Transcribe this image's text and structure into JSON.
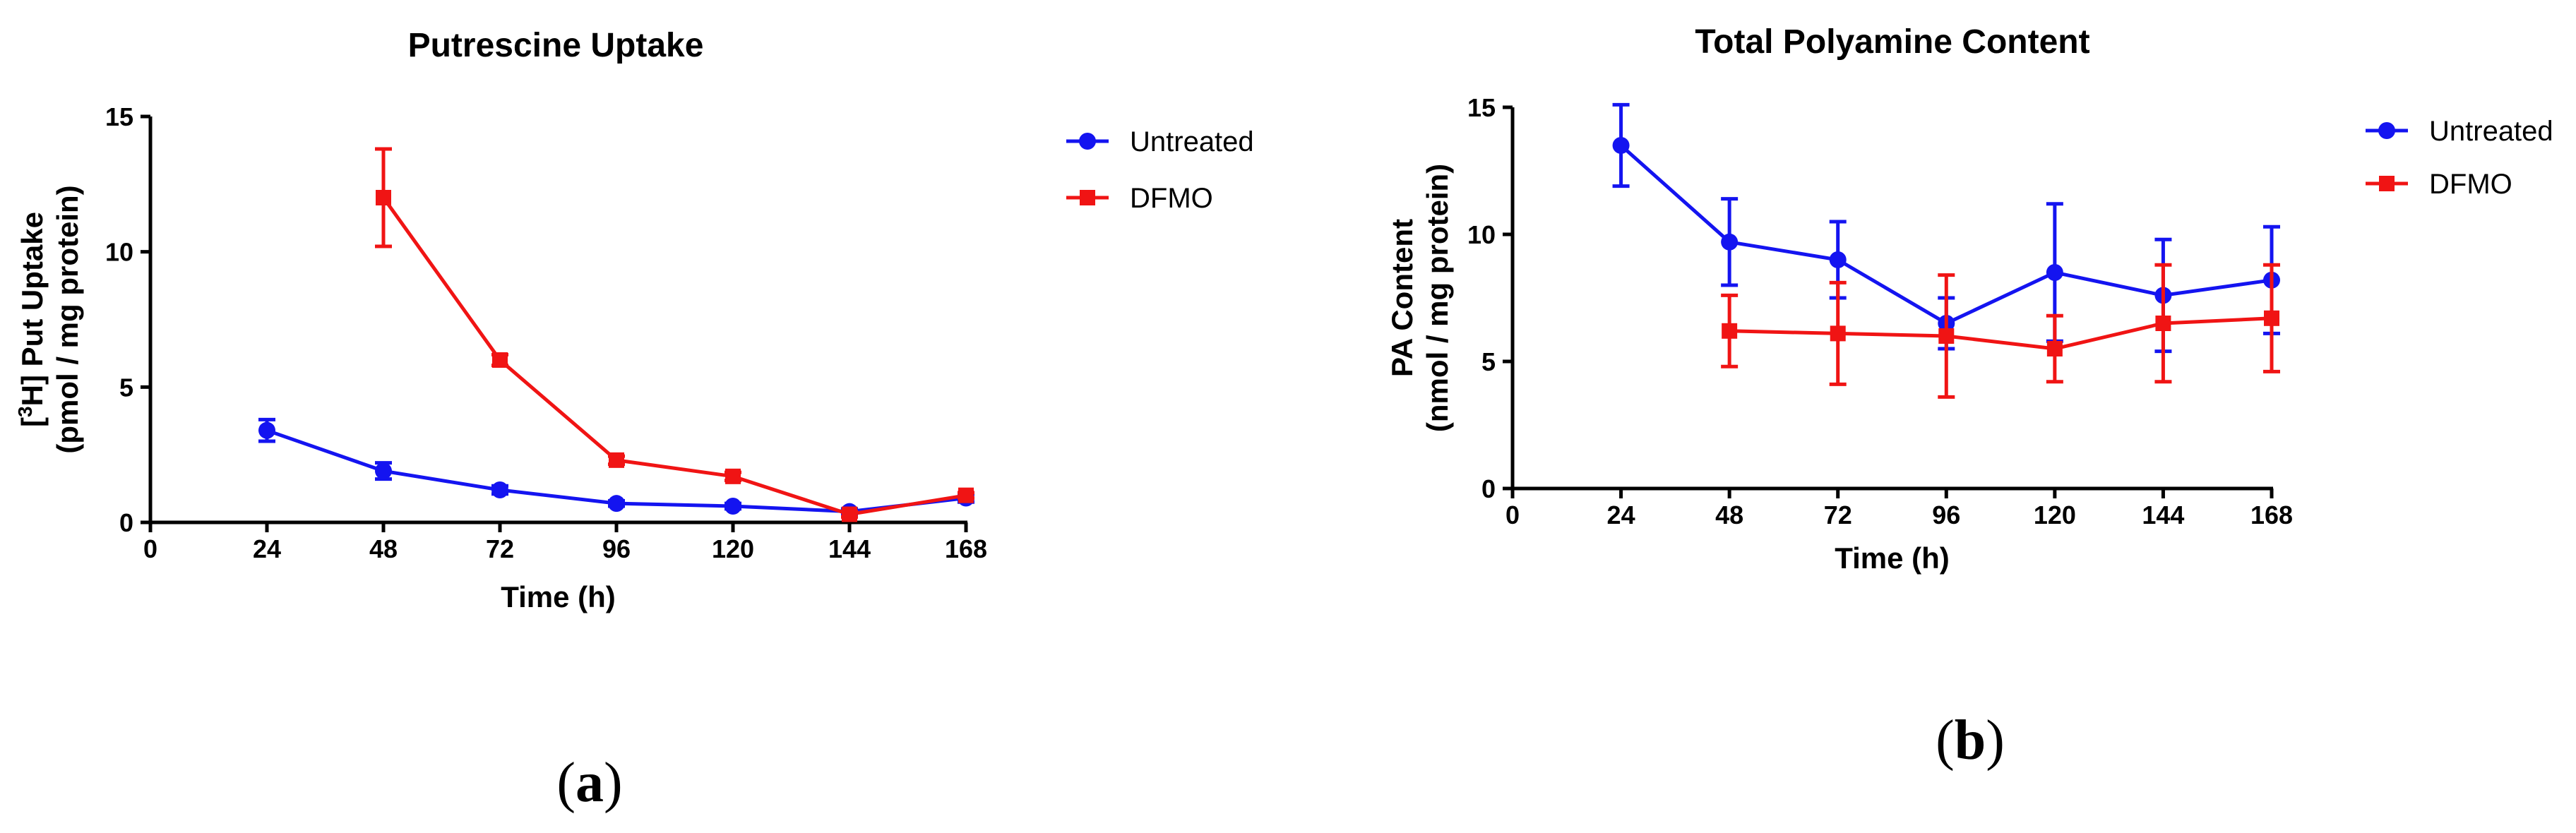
{
  "chart_data": [
    {
      "type": "line",
      "panel_label": "(a)",
      "panel_letter": "a",
      "title": "Putrescine Uptake",
      "xlabel": "Time (h)",
      "ylabel_line1": "[3H] Put Uptake",
      "ylabel_line1_parts": [
        "[",
        "3",
        "H] Put Uptake"
      ],
      "ylabel_line2": "(pmol / mg protein)",
      "xlim": [
        0,
        168
      ],
      "ylim": [
        0,
        15
      ],
      "xticks": [
        0,
        24,
        48,
        72,
        96,
        120,
        144,
        168
      ],
      "yticks": [
        0,
        5,
        10,
        15
      ],
      "legend_position": "top-right",
      "series": [
        {
          "name": "Untreated",
          "color": "#1414f0",
          "marker": "circle",
          "x": [
            24,
            48,
            72,
            96,
            120,
            144,
            168
          ],
          "y": [
            3.4,
            1.9,
            1.2,
            0.7,
            0.6,
            0.4,
            0.9
          ],
          "err": [
            0.4,
            0.3,
            0.15,
            0.1,
            0.1,
            0.1,
            0.15
          ]
        },
        {
          "name": "DFMO",
          "color": "#f01414",
          "marker": "square",
          "x": [
            48,
            72,
            96,
            120,
            144,
            168
          ],
          "y": [
            12.0,
            6.0,
            2.3,
            1.7,
            0.3,
            1.0
          ],
          "err": [
            1.8,
            0.2,
            0.15,
            0.15,
            0.1,
            0.1
          ]
        }
      ]
    },
    {
      "type": "line",
      "panel_label": "(b)",
      "panel_letter": "b",
      "title": "Total Polyamine Content",
      "xlabel": "Time (h)",
      "ylabel_line1": "PA Content",
      "ylabel_line2": "(nmol / mg protein)",
      "xlim": [
        0,
        168
      ],
      "ylim": [
        0,
        15
      ],
      "xticks": [
        0,
        24,
        48,
        72,
        96,
        120,
        144,
        168
      ],
      "yticks": [
        0,
        5,
        10,
        15
      ],
      "legend_position": "top-right",
      "series": [
        {
          "name": "Untreated",
          "color": "#1414f0",
          "marker": "circle",
          "x": [
            24,
            48,
            72,
            96,
            120,
            144,
            168
          ],
          "y": [
            13.5,
            9.7,
            9.0,
            6.5,
            8.5,
            7.6,
            8.2
          ],
          "err": [
            1.6,
            1.7,
            1.5,
            1.0,
            2.7,
            2.2,
            2.1
          ]
        },
        {
          "name": "DFMO",
          "color": "#f01414",
          "marker": "square",
          "x": [
            48,
            72,
            96,
            120,
            144,
            168
          ],
          "y": [
            6.2,
            6.1,
            6.0,
            5.5,
            6.5,
            6.7
          ],
          "err": [
            1.4,
            2.0,
            2.4,
            1.3,
            2.3,
            2.1
          ]
        }
      ]
    }
  ]
}
